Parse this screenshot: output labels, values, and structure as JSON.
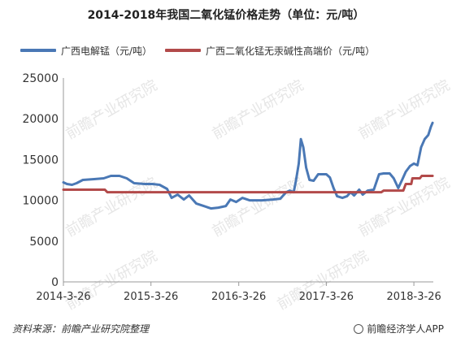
{
  "title": "2014-2018年我国二氧化锰价格走势（单位：元/吨）",
  "source": "资料来源：前瞻产业研究院整理",
  "brand": "前瞻经济学人APP",
  "watermark_text": "前瞻产业研究院",
  "chart_data": {
    "type": "line",
    "x_type": "date",
    "xlim": [
      "2014-03-26",
      "2018-06-15"
    ],
    "ylim": [
      0,
      25000
    ],
    "yticks": [
      0,
      5000,
      10000,
      15000,
      20000,
      25000
    ],
    "xtick_labels": [
      "2014-3-26",
      "2015-3-26",
      "2016-3-26",
      "2017-3-26",
      "2018-3-26"
    ],
    "xtick_dates": [
      "2014-03-26",
      "2015-03-26",
      "2016-03-26",
      "2017-03-26",
      "2018-03-26"
    ],
    "grid": false,
    "legend_position": "top",
    "series": [
      {
        "name": "广西电解锰（元/吨）",
        "color": "#4a78b5",
        "points": [
          [
            "2014-03-26",
            12200
          ],
          [
            "2014-04-10",
            12000
          ],
          [
            "2014-05-01",
            11900
          ],
          [
            "2014-05-20",
            12100
          ],
          [
            "2014-06-15",
            12500
          ],
          [
            "2014-08-01",
            12600
          ],
          [
            "2014-09-10",
            12700
          ],
          [
            "2014-10-10",
            13000
          ],
          [
            "2014-11-15",
            13000
          ],
          [
            "2014-12-15",
            12700
          ],
          [
            "2015-01-15",
            12100
          ],
          [
            "2015-03-01",
            12000
          ],
          [
            "2015-04-01",
            12000
          ],
          [
            "2015-05-01",
            11900
          ],
          [
            "2015-06-01",
            11400
          ],
          [
            "2015-06-20",
            10300
          ],
          [
            "2015-07-15",
            10700
          ],
          [
            "2015-08-10",
            10100
          ],
          [
            "2015-09-01",
            10600
          ],
          [
            "2015-10-01",
            9600
          ],
          [
            "2015-11-01",
            9300
          ],
          [
            "2015-12-01",
            9000
          ],
          [
            "2016-01-01",
            9100
          ],
          [
            "2016-02-01",
            9300
          ],
          [
            "2016-02-20",
            10100
          ],
          [
            "2016-03-15",
            9800
          ],
          [
            "2016-04-10",
            10300
          ],
          [
            "2016-05-10",
            10000
          ],
          [
            "2016-07-01",
            10000
          ],
          [
            "2016-08-15",
            10100
          ],
          [
            "2016-09-15",
            10200
          ],
          [
            "2016-10-10",
            11000
          ],
          [
            "2016-10-25",
            11200
          ],
          [
            "2016-11-10",
            11000
          ],
          [
            "2016-11-20",
            12500
          ],
          [
            "2016-12-01",
            14500
          ],
          [
            "2016-12-10",
            17500
          ],
          [
            "2016-12-20",
            16500
          ],
          [
            "2017-01-01",
            14000
          ],
          [
            "2017-01-15",
            12500
          ],
          [
            "2017-02-01",
            12400
          ],
          [
            "2017-02-20",
            13200
          ],
          [
            "2017-03-10",
            13200
          ],
          [
            "2017-03-26",
            13200
          ],
          [
            "2017-04-10",
            12800
          ],
          [
            "2017-04-25",
            11500
          ],
          [
            "2017-05-10",
            10500
          ],
          [
            "2017-06-01",
            10300
          ],
          [
            "2017-06-20",
            10500
          ],
          [
            "2017-07-05",
            11000
          ],
          [
            "2017-07-20",
            10600
          ],
          [
            "2017-08-10",
            11300
          ],
          [
            "2017-08-25",
            10700
          ],
          [
            "2017-09-15",
            11200
          ],
          [
            "2017-10-10",
            11300
          ],
          [
            "2017-11-01",
            13200
          ],
          [
            "2017-11-20",
            13300
          ],
          [
            "2017-12-15",
            13300
          ],
          [
            "2018-01-01",
            12700
          ],
          [
            "2018-01-20",
            11500
          ],
          [
            "2018-02-05",
            12500
          ],
          [
            "2018-02-20",
            13500
          ],
          [
            "2018-03-10",
            14200
          ],
          [
            "2018-03-26",
            14500
          ],
          [
            "2018-04-10",
            14300
          ],
          [
            "2018-04-25",
            16500
          ],
          [
            "2018-05-10",
            17500
          ],
          [
            "2018-05-25",
            18000
          ],
          [
            "2018-06-05",
            19000
          ],
          [
            "2018-06-12",
            19500
          ]
        ]
      },
      {
        "name": "广西二氧化锰无汞碱性高端价（元/吨）",
        "color": "#b24a4a",
        "points": [
          [
            "2014-03-26",
            11300
          ],
          [
            "2014-09-15",
            11300
          ],
          [
            "2014-09-25",
            11000
          ],
          [
            "2017-11-10",
            11000
          ],
          [
            "2017-11-20",
            11200
          ],
          [
            "2018-02-10",
            11200
          ],
          [
            "2018-02-20",
            12000
          ],
          [
            "2018-03-15",
            12000
          ],
          [
            "2018-03-20",
            12700
          ],
          [
            "2018-04-20",
            12700
          ],
          [
            "2018-04-28",
            13000
          ],
          [
            "2018-06-12",
            13000
          ]
        ]
      }
    ]
  }
}
